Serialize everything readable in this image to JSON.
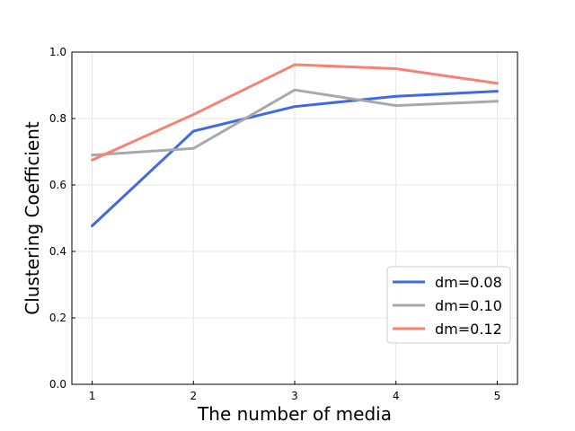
{
  "chart_data": {
    "type": "line",
    "title": "",
    "xlabel": "The number of media",
    "ylabel": "Clustering Coefficient",
    "x": [
      1,
      2,
      3,
      4,
      5
    ],
    "xlim": [
      0.8,
      5.2
    ],
    "ylim": [
      0.0,
      1.0
    ],
    "xticks": [
      "1",
      "2",
      "3",
      "4",
      "5"
    ],
    "yticks": [
      "0.0",
      "0.2",
      "0.4",
      "0.6",
      "0.8",
      "1.0"
    ],
    "grid": true,
    "legend_position": "lower-right",
    "series": [
      {
        "name": "dm=0.08",
        "color": "#4169e1",
        "values": [
          0.477,
          0.762,
          0.836,
          0.867,
          0.882
        ]
      },
      {
        "name": "dm=0.10",
        "color": "#a9a9a9",
        "values": [
          0.69,
          0.71,
          0.886,
          0.839,
          0.852
        ]
      },
      {
        "name": "dm=0.12",
        "color": "#fa8072",
        "values": [
          0.675,
          0.812,
          0.962,
          0.95,
          0.906
        ]
      }
    ]
  }
}
